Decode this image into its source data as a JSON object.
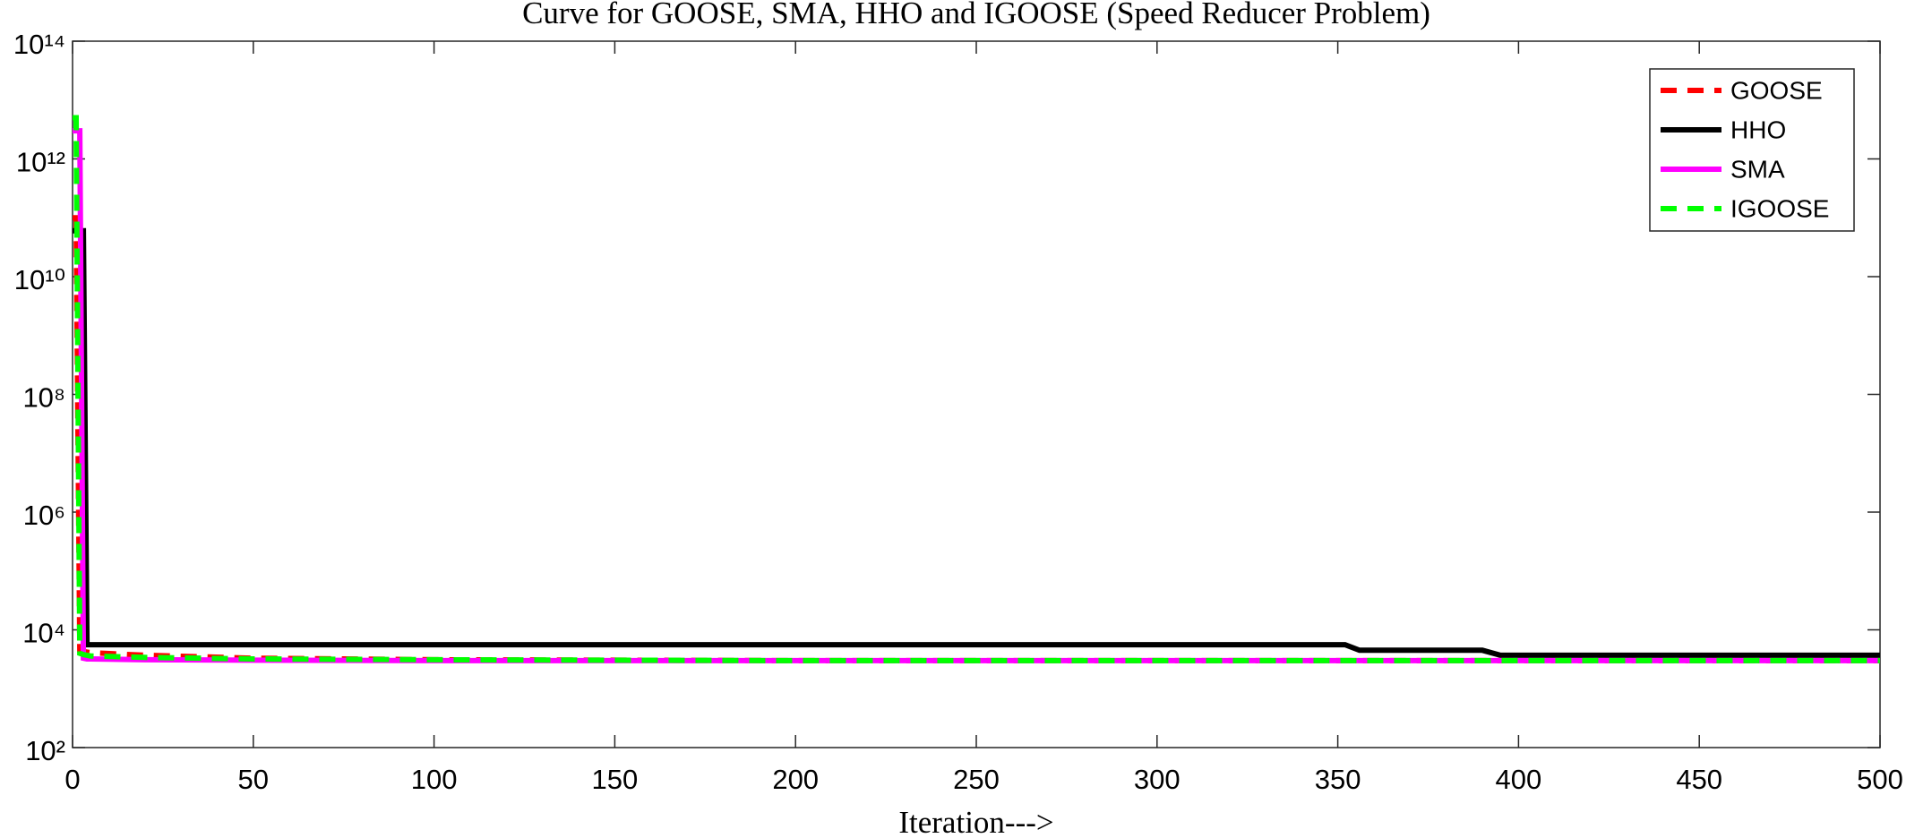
{
  "chart_data": {
    "type": "line",
    "title": "Curve for GOOSE, SMA, HHO and IGOOSE (Speed Reducer Problem)",
    "xlabel": "Iteration--->",
    "log_y": true,
    "legend": "upper right",
    "grid": false,
    "x": [
      0,
      1,
      2,
      3,
      4,
      5,
      20,
      50,
      100,
      200,
      352,
      356,
      390,
      395,
      500
    ],
    "series": [
      {
        "name": "GOOSE",
        "color": "#ff0000",
        "style": "dashed",
        "values": [
          100000000000,
          100000000000,
          4500,
          4300,
          4200,
          4100,
          3700,
          3300,
          3100,
          3000,
          3000,
          3000,
          3000,
          3000,
          3000
        ]
      },
      {
        "name": "HHO",
        "color": "#000000",
        "style": "solid",
        "values": [
          60000000000,
          60000000000,
          60000000000,
          60000000000,
          5600,
          5600,
          5600,
          5600,
          5600,
          5600,
          5600,
          4500,
          4500,
          3700,
          3700
        ]
      },
      {
        "name": "SMA",
        "color": "#ff00ff",
        "style": "solid",
        "values": [
          3000000000000,
          3000000000000,
          3000000000000,
          3300,
          3200,
          3200,
          3100,
          3050,
          3000,
          3000,
          3000,
          3000,
          3000,
          3000,
          3000
        ]
      },
      {
        "name": "IGOOSE",
        "color": "#00ff00",
        "style": "dashed",
        "values": [
          5000000000000,
          5000000000000,
          4000,
          3800,
          3700,
          3600,
          3400,
          3200,
          3100,
          3000,
          3000,
          3000,
          3000,
          3000,
          3000
        ]
      }
    ],
    "xlim": [
      0,
      500
    ],
    "xticks": [
      0,
      50,
      100,
      150,
      200,
      250,
      300,
      350,
      400,
      450,
      500
    ],
    "ylim": [
      100,
      100000000000000
    ],
    "yticks": [
      {
        "value": 100,
        "label": "10²"
      },
      {
        "value": 10000,
        "label": "10⁴"
      },
      {
        "value": 1000000,
        "label": "10⁶"
      },
      {
        "value": 100000000,
        "label": "10⁸"
      },
      {
        "value": 10000000000,
        "label": "10¹⁰"
      },
      {
        "value": 1000000000000,
        "label": "10¹²"
      },
      {
        "value": 100000000000000,
        "label": "10¹⁴"
      }
    ]
  }
}
